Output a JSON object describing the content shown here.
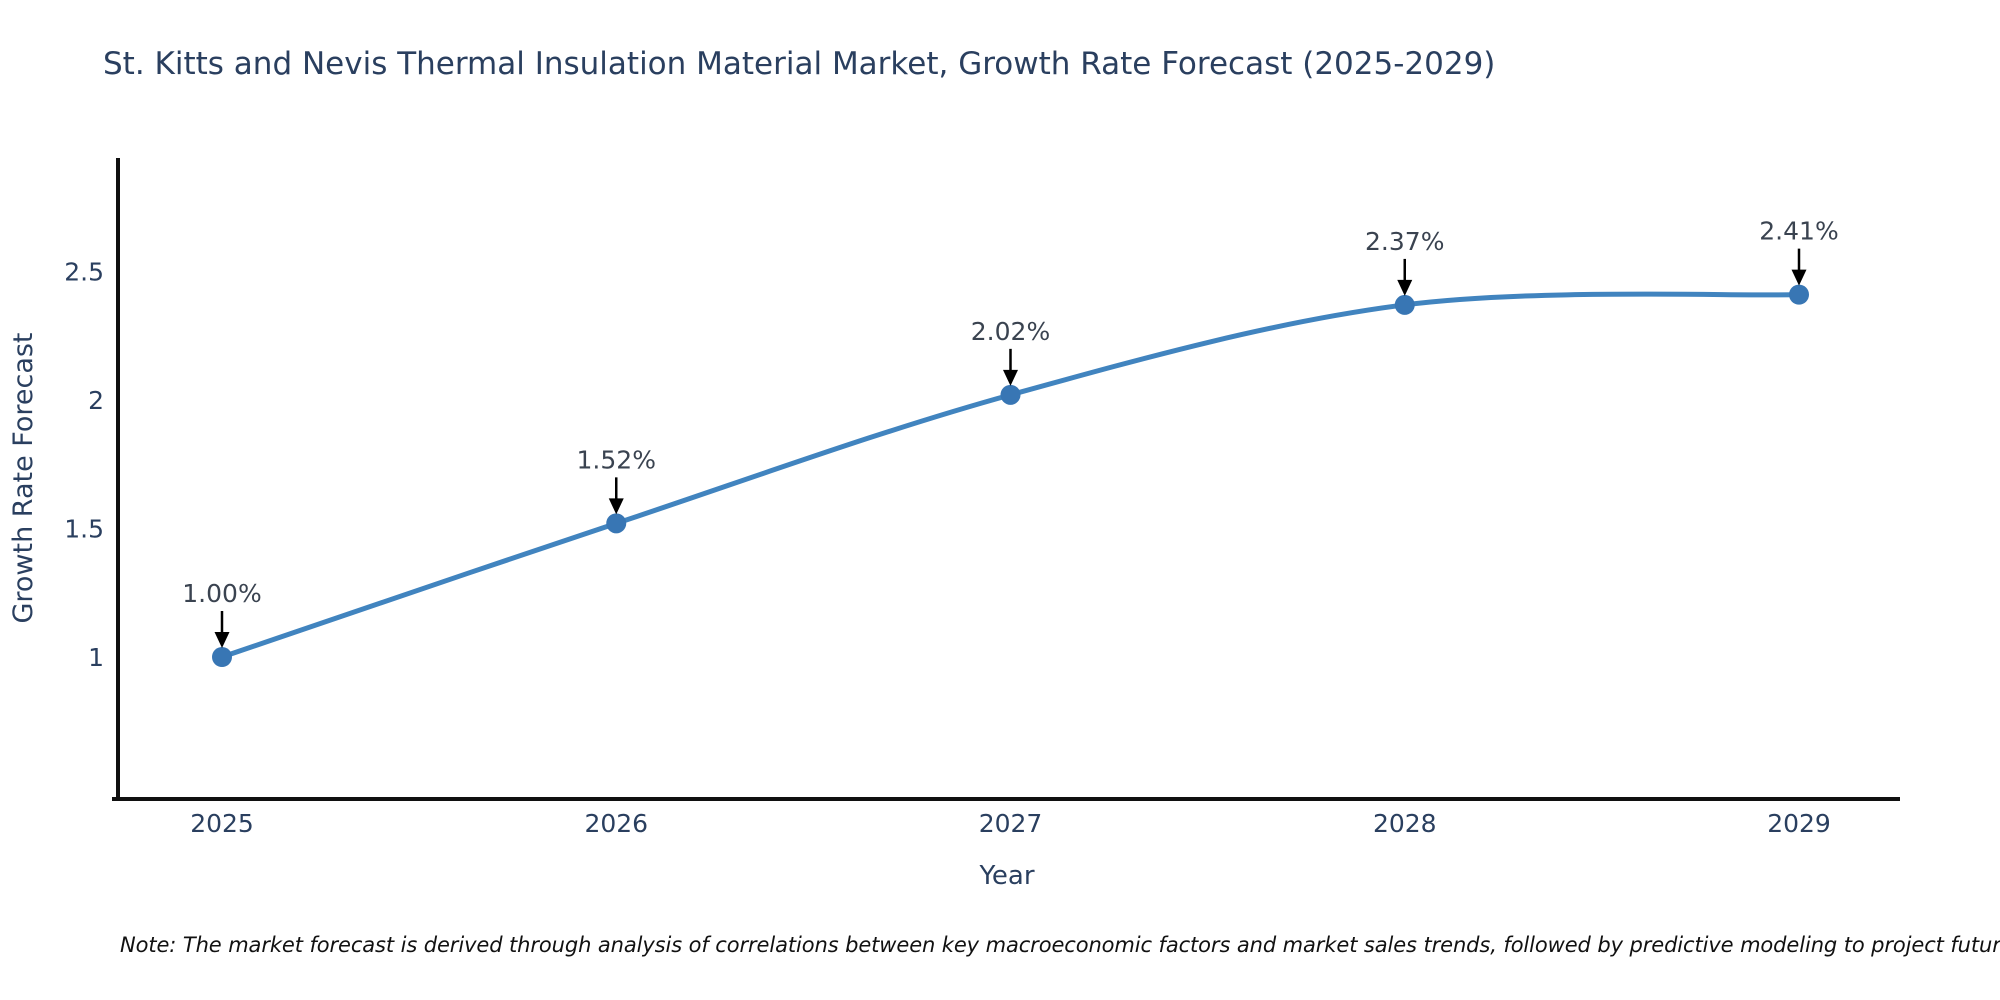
{
  "title": "St. Kitts and Nevis Thermal Insulation Material Market, Growth Rate Forecast (2025-2029)",
  "note": "Note: The market forecast is derived through analysis of correlations between key macroeconomic factors and market sales trends, followed by predictive modeling to project future sales",
  "colors": {
    "line": "#4184bf",
    "marker": "#3876b4",
    "title_text": "#2a3f5f",
    "tick_text": "#2a3f5f",
    "label_text": "#3a4350",
    "axis": "#101010",
    "arrow": "#000000",
    "background": "#ffffff"
  },
  "chart_data": {
    "type": "line",
    "title": "St. Kitts and Nevis Thermal Insulation Material Market, Growth Rate Forecast (2025-2029)",
    "x": [
      2025,
      2026,
      2027,
      2028,
      2029
    ],
    "categories": [
      "2025",
      "2026",
      "2027",
      "2028",
      "2029"
    ],
    "values": [
      1.0,
      1.52,
      2.02,
      2.37,
      2.41
    ],
    "point_labels": [
      "1.00%",
      "1.52%",
      "2.02%",
      "2.37%",
      "2.41%"
    ],
    "xlabel": "Year",
    "ylabel": "Growth Rate Forecast",
    "yticks": [
      1,
      1.5,
      2,
      2.5
    ],
    "ytick_labels": [
      "1",
      "1.5",
      "2",
      "2.5"
    ],
    "ylim": [
      0.45,
      2.94
    ],
    "grid": false,
    "legend": false,
    "line_shape": "spline",
    "marker": "circle",
    "annotation_style": "label-with-down-arrow"
  }
}
